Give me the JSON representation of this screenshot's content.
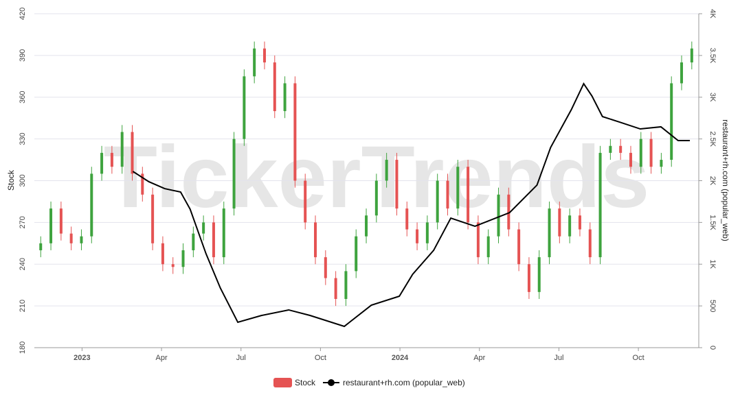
{
  "chart_data": {
    "type": "candlestick",
    "watermark": "TickerTrends",
    "ylabel": "Stock",
    "y2label": "restaurant+rh.com  (popular_web)",
    "xlim": [
      2022.85,
      2024.94
    ],
    "xticks": [
      {
        "value": 2023,
        "label": "2023"
      },
      {
        "value": 2023.25,
        "label": "Apr"
      },
      {
        "value": 2023.5,
        "label": "Jul"
      },
      {
        "value": 2023.75,
        "label": "Oct"
      },
      {
        "value": 2024,
        "label": "2024"
      },
      {
        "value": 2024.25,
        "label": "Apr"
      },
      {
        "value": 2024.5,
        "label": "Jul"
      },
      {
        "value": 2024.75,
        "label": "Oct"
      }
    ],
    "ylim": [
      180,
      420
    ],
    "yticks": [
      180,
      210,
      240,
      270,
      300,
      330,
      360,
      390,
      420
    ],
    "y2lim": [
      0,
      4000
    ],
    "y2ticks": [
      0,
      500,
      {
        "value": 1000,
        "label": "1K"
      },
      {
        "value": 1500,
        "label": "1.5K"
      },
      {
        "value": 2000,
        "label": "2K"
      },
      {
        "value": 2500,
        "label": "2.5K"
      },
      {
        "value": 3000,
        "label": "3K"
      },
      {
        "value": 3500,
        "label": "3.5K"
      },
      {
        "value": 4000,
        "label": "4K"
      }
    ],
    "grid": true,
    "candles": {
      "name": "Stock",
      "color": "#e55353",
      "up_color": "#3ea33e",
      "down_color": "#e55353",
      "x": [
        2022.87,
        2022.902,
        2022.934,
        2022.966,
        2022.998,
        2023.03,
        2023.062,
        2023.094,
        2023.126,
        2023.158,
        2023.19,
        2023.222,
        2023.254,
        2023.286,
        2023.318,
        2023.35,
        2023.382,
        2023.414,
        2023.446,
        2023.478,
        2023.51,
        2023.542,
        2023.574,
        2023.606,
        2023.638,
        2023.67,
        2023.702,
        2023.734,
        2023.766,
        2023.798,
        2023.83,
        2023.862,
        2023.894,
        2023.926,
        2023.958,
        2023.99,
        2024.022,
        2024.054,
        2024.086,
        2024.118,
        2024.15,
        2024.182,
        2024.214,
        2024.246,
        2024.278,
        2024.31,
        2024.342,
        2024.374,
        2024.406,
        2024.438,
        2024.47,
        2024.502,
        2024.534,
        2024.566,
        2024.598,
        2024.63,
        2024.662,
        2024.694,
        2024.726,
        2024.758,
        2024.79,
        2024.822,
        2024.854,
        2024.886,
        2024.918
      ],
      "open": [
        250,
        255,
        280,
        262,
        255,
        260,
        305,
        320,
        310,
        335,
        305,
        290,
        255,
        240,
        238,
        250,
        262,
        270,
        245,
        280,
        330,
        375,
        395,
        385,
        350,
        370,
        300,
        270,
        245,
        230,
        215,
        235,
        260,
        275,
        300,
        315,
        280,
        265,
        255,
        270,
        300,
        280,
        310,
        270,
        245,
        260,
        290,
        265,
        240,
        220,
        245,
        280,
        260,
        275,
        265,
        245,
        320,
        325,
        320,
        310,
        330,
        310,
        315,
        370,
        385
      ],
      "high": [
        260,
        285,
        285,
        267,
        265,
        310,
        325,
        325,
        340,
        340,
        310,
        295,
        260,
        245,
        255,
        267,
        275,
        275,
        285,
        335,
        380,
        400,
        400,
        390,
        375,
        375,
        305,
        275,
        250,
        235,
        240,
        265,
        280,
        305,
        320,
        320,
        285,
        270,
        275,
        305,
        305,
        315,
        315,
        275,
        265,
        295,
        295,
        270,
        245,
        250,
        285,
        285,
        280,
        280,
        270,
        325,
        330,
        330,
        325,
        335,
        335,
        320,
        375,
        390,
        400
      ],
      "low": [
        245,
        250,
        257,
        250,
        250,
        255,
        300,
        305,
        305,
        300,
        285,
        250,
        235,
        233,
        233,
        245,
        257,
        240,
        240,
        275,
        325,
        370,
        380,
        345,
        345,
        295,
        265,
        240,
        225,
        210,
        210,
        230,
        255,
        270,
        295,
        275,
        260,
        250,
        250,
        265,
        275,
        275,
        265,
        240,
        240,
        255,
        260,
        235,
        215,
        215,
        240,
        255,
        255,
        260,
        240,
        240,
        315,
        315,
        305,
        305,
        305,
        305,
        310,
        365,
        380
      ],
      "close": [
        255,
        280,
        262,
        255,
        260,
        305,
        320,
        310,
        335,
        305,
        290,
        255,
        240,
        238,
        250,
        262,
        270,
        245,
        280,
        330,
        375,
        395,
        385,
        350,
        370,
        300,
        270,
        245,
        230,
        215,
        235,
        260,
        275,
        300,
        315,
        280,
        265,
        255,
        270,
        300,
        280,
        310,
        270,
        245,
        260,
        290,
        265,
        240,
        220,
        245,
        280,
        260,
        275,
        265,
        245,
        320,
        325,
        320,
        310,
        330,
        310,
        315,
        370,
        385,
        395
      ]
    },
    "series": [
      {
        "name": "restaurant+rh.com  (popular_web)",
        "color": "#000000",
        "axis": "y2",
        "x": [
          2023.16,
          2023.21,
          2023.26,
          2023.31,
          2023.34,
          2023.39,
          2023.435,
          2023.49,
          2023.565,
          2023.65,
          2023.717,
          2023.825,
          2023.91,
          2023.998,
          2024.04,
          2024.106,
          2024.16,
          2024.236,
          2024.345,
          2024.431,
          2024.474,
          2024.539,
          2024.578,
          2024.604,
          2024.637,
          2024.691,
          2024.756,
          2024.821,
          2024.875,
          2024.912
        ],
        "values": [
          2111,
          1988,
          1905,
          1864,
          1659,
          1125,
          715,
          304,
          386,
          452,
          386,
          255,
          509,
          616,
          879,
          1166,
          1552,
          1454,
          1618,
          1947,
          2398,
          2850,
          3162,
          3014,
          2768,
          2702,
          2620,
          2645,
          2480,
          2480
        ]
      }
    ]
  }
}
